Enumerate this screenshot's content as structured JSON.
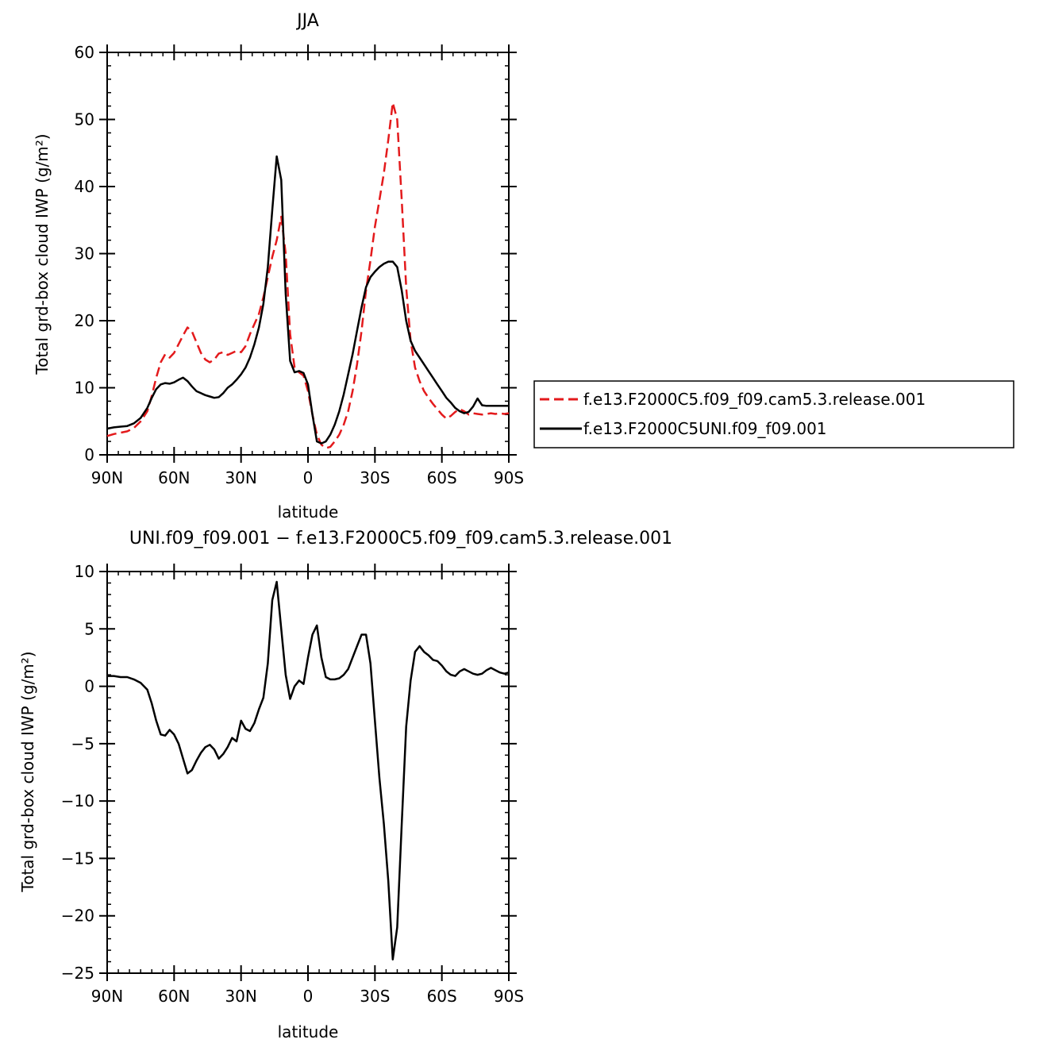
{
  "chart_data": [
    {
      "type": "line",
      "title": "JJA",
      "xlabel": "latitude",
      "ylabel": "Total grd-box cloud IWP (g/m²)",
      "x_range": [
        90,
        -90
      ],
      "ylim": [
        0,
        60
      ],
      "x_ticks": [
        "90N",
        "60N",
        "30N",
        "0",
        "30S",
        "60S",
        "90S"
      ],
      "x_tick_values": [
        90,
        60,
        30,
        0,
        -30,
        -60,
        -90
      ],
      "y_ticks": [
        0,
        10,
        20,
        30,
        40,
        50,
        60
      ],
      "legend_position": "right",
      "series": [
        {
          "name": "f.e13.F2000C5.f09_f09.cam5.3.release.001",
          "color": "#e31a1c",
          "dash": "dashed",
          "x": [
            90,
            87,
            84,
            81,
            78,
            75,
            72,
            70,
            68,
            66,
            64,
            62,
            60,
            58,
            56,
            54,
            52,
            50,
            48,
            46,
            44,
            42,
            40,
            38,
            36,
            34,
            32,
            30,
            28,
            26,
            24,
            22,
            20,
            18,
            16,
            14,
            12,
            10,
            8,
            6,
            4,
            2,
            0,
            -2,
            -4,
            -6,
            -8,
            -10,
            -12,
            -14,
            -16,
            -18,
            -20,
            -22,
            -24,
            -26,
            -28,
            -30,
            -32,
            -34,
            -36,
            -38,
            -40,
            -42,
            -44,
            -46,
            -48,
            -50,
            -52,
            -54,
            -56,
            -58,
            -60,
            -62,
            -64,
            -66,
            -68,
            -70,
            -72,
            -74,
            -76,
            -78,
            -80,
            -82,
            -84,
            -86,
            -88,
            -90
          ],
          "y": [
            2.8,
            3.1,
            3.3,
            3.5,
            4.0,
            5.0,
            6.5,
            8.8,
            11.5,
            13.8,
            15.0,
            14.5,
            15.2,
            16.5,
            17.8,
            19.0,
            18.4,
            16.8,
            15.2,
            14.2,
            13.8,
            14.2,
            15.1,
            15.3,
            14.9,
            15.2,
            15.5,
            15.3,
            16.2,
            18.0,
            19.5,
            21.0,
            23.5,
            26.5,
            29.5,
            32.0,
            35.5,
            30.0,
            18.0,
            13.0,
            12.3,
            11.8,
            9.5,
            6.0,
            3.0,
            1.5,
            1.0,
            1.2,
            2.0,
            3.0,
            4.5,
            6.5,
            9.5,
            13.5,
            18.5,
            24.5,
            29.0,
            34.0,
            38.0,
            42.0,
            47.0,
            52.5,
            50.0,
            38.0,
            25.0,
            17.0,
            13.0,
            11.0,
            9.5,
            8.5,
            7.6,
            6.8,
            6.0,
            5.4,
            5.8,
            6.4,
            6.8,
            6.5,
            6.0,
            6.2,
            6.1,
            6.0,
            6.1,
            6.2,
            6.1,
            6.2,
            6.1,
            6.2
          ]
        },
        {
          "name": "f.e13.F2000C5UNI.f09_f09.001",
          "color": "#000000",
          "dash": "solid",
          "x": [
            90,
            87,
            84,
            81,
            78,
            75,
            72,
            70,
            68,
            66,
            64,
            62,
            60,
            58,
            56,
            54,
            52,
            50,
            48,
            46,
            44,
            42,
            40,
            38,
            36,
            34,
            32,
            30,
            28,
            26,
            24,
            22,
            20,
            18,
            16,
            14,
            12,
            10,
            8,
            6,
            4,
            2,
            0,
            -2,
            -4,
            -6,
            -8,
            -10,
            -12,
            -14,
            -16,
            -18,
            -20,
            -22,
            -24,
            -26,
            -28,
            -30,
            -32,
            -34,
            -36,
            -38,
            -40,
            -42,
            -44,
            -46,
            -48,
            -50,
            -52,
            -54,
            -56,
            -58,
            -60,
            -62,
            -64,
            -66,
            -68,
            -70,
            -72,
            -74,
            -76,
            -78,
            -80,
            -82,
            -84,
            -86,
            -88,
            -90
          ],
          "y": [
            3.9,
            4.1,
            4.2,
            4.3,
            4.7,
            5.5,
            7.0,
            8.5,
            9.8,
            10.5,
            10.7,
            10.6,
            10.8,
            11.2,
            11.5,
            11.0,
            10.2,
            9.5,
            9.2,
            8.9,
            8.7,
            8.5,
            8.6,
            9.2,
            10.0,
            10.5,
            11.2,
            12.0,
            13.0,
            14.5,
            16.5,
            19.0,
            22.5,
            28.0,
            36.5,
            44.5,
            41.0,
            24.0,
            14.0,
            12.3,
            12.5,
            12.2,
            10.5,
            6.0,
            2.0,
            1.7,
            2.0,
            3.0,
            4.5,
            6.5,
            9.0,
            12.0,
            15.0,
            18.5,
            22.0,
            25.0,
            26.5,
            27.3,
            28.0,
            28.5,
            28.8,
            28.8,
            28.0,
            24.5,
            20.0,
            17.0,
            15.5,
            14.5,
            13.5,
            12.5,
            11.5,
            10.5,
            9.5,
            8.5,
            7.8,
            7.0,
            6.5,
            6.2,
            6.4,
            7.2,
            8.4,
            7.4,
            7.3,
            7.3,
            7.3,
            7.3,
            7.3,
            7.3
          ]
        }
      ]
    },
    {
      "type": "line",
      "title": "UNI.f09_f09.001 − f.e13.F2000C5.f09_f09.cam5.3.release.001",
      "xlabel": "latitude",
      "ylabel": "Total grd-box cloud IWP (g/m²)",
      "x_range": [
        90,
        -90
      ],
      "ylim": [
        -25,
        10
      ],
      "x_ticks": [
        "90N",
        "60N",
        "30N",
        "0",
        "30S",
        "60S",
        "90S"
      ],
      "x_tick_values": [
        90,
        60,
        30,
        0,
        -30,
        -60,
        -90
      ],
      "y_ticks": [
        "10",
        "5",
        "0",
        "−5",
        "−10",
        "−15",
        "−20",
        "−25"
      ],
      "y_tick_values": [
        10,
        5,
        0,
        -5,
        -10,
        -15,
        -20,
        -25
      ],
      "series": [
        {
          "color": "#000000",
          "dash": "solid",
          "x": [
            90,
            87,
            84,
            81,
            78,
            75,
            72,
            70,
            68,
            66,
            64,
            62,
            60,
            58,
            56,
            54,
            52,
            50,
            48,
            46,
            44,
            42,
            40,
            38,
            36,
            34,
            32,
            30,
            28,
            26,
            24,
            22,
            20,
            18,
            16,
            14,
            12,
            10,
            8,
            6,
            4,
            2,
            0,
            -2,
            -4,
            -6,
            -8,
            -10,
            -12,
            -14,
            -16,
            -18,
            -20,
            -22,
            -24,
            -26,
            -28,
            -30,
            -32,
            -34,
            -36,
            -38,
            -40,
            -42,
            -44,
            -46,
            -48,
            -50,
            -52,
            -54,
            -56,
            -58,
            -60,
            -62,
            -64,
            -66,
            -68,
            -70,
            -72,
            -74,
            -76,
            -78,
            -80,
            -82,
            -84,
            -86,
            -88,
            -90
          ],
          "y": [
            0.9,
            0.9,
            0.8,
            0.8,
            0.6,
            0.3,
            -0.3,
            -1.5,
            -3.0,
            -4.2,
            -4.3,
            -3.8,
            -4.2,
            -5.0,
            -6.3,
            -7.6,
            -7.3,
            -6.5,
            -5.8,
            -5.3,
            -5.1,
            -5.5,
            -6.3,
            -5.9,
            -5.3,
            -4.5,
            -4.8,
            -3.0,
            -3.7,
            -3.9,
            -3.2,
            -2.0,
            -1.0,
            2.0,
            7.5,
            9.1,
            5.0,
            1.0,
            -1.1,
            0.0,
            0.5,
            0.2,
            2.5,
            4.5,
            5.3,
            2.5,
            0.8,
            0.6,
            0.6,
            0.7,
            1.0,
            1.5,
            2.5,
            3.5,
            4.5,
            4.5,
            2.0,
            -3.0,
            -8.0,
            -12.0,
            -17.0,
            -23.8,
            -21.0,
            -12.0,
            -3.5,
            0.5,
            3.0,
            3.5,
            3.0,
            2.7,
            2.3,
            2.2,
            1.8,
            1.3,
            1.0,
            0.9,
            1.3,
            1.5,
            1.3,
            1.1,
            1.0,
            1.1,
            1.4,
            1.6,
            1.4,
            1.2,
            1.1,
            1.2
          ]
        }
      ]
    }
  ]
}
